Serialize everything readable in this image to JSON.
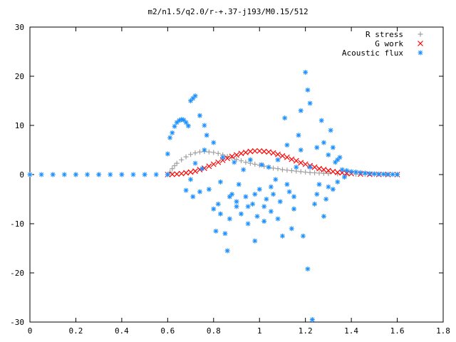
{
  "chart_data": {
    "type": "scatter",
    "title": "m2/n1.5/q2.0/r-+.37-j193/M0.15/512",
    "xlim": [
      0,
      1.8
    ],
    "ylim": [
      -30,
      30
    ],
    "x_ticks": [
      "0",
      "0.2",
      "0.4",
      "0.6",
      "0.8",
      "1",
      "1.2",
      "1.4",
      "1.6",
      "1.8"
    ],
    "y_ticks": [
      "30",
      "20",
      "10",
      "0",
      "-10",
      "-20",
      "-30"
    ],
    "x_tick_values": [
      0,
      0.2,
      0.4,
      0.6,
      0.8,
      1.0,
      1.2,
      1.4,
      1.6,
      1.8
    ],
    "y_tick_values": [
      30,
      20,
      10,
      0,
      -10,
      -20,
      -30
    ],
    "grid": false,
    "legend_position": "top-right",
    "series": [
      {
        "name": "R stress",
        "marker": "plus",
        "color": "#a0a0a0",
        "points": [
          [
            0.0,
            0
          ],
          [
            0.1,
            0
          ],
          [
            0.2,
            0
          ],
          [
            0.3,
            0
          ],
          [
            0.4,
            0
          ],
          [
            0.5,
            0
          ],
          [
            0.6,
            0
          ],
          [
            0.61,
            0.5
          ],
          [
            0.62,
            1.2
          ],
          [
            0.63,
            1.8
          ],
          [
            0.64,
            2.3
          ],
          [
            0.66,
            3.0
          ],
          [
            0.68,
            3.6
          ],
          [
            0.7,
            4.1
          ],
          [
            0.72,
            4.4
          ],
          [
            0.74,
            4.6
          ],
          [
            0.76,
            4.7
          ],
          [
            0.78,
            4.6
          ],
          [
            0.8,
            4.5
          ],
          [
            0.82,
            4.3
          ],
          [
            0.84,
            4.0
          ],
          [
            0.86,
            3.7
          ],
          [
            0.88,
            3.4
          ],
          [
            0.9,
            3.1
          ],
          [
            0.92,
            2.8
          ],
          [
            0.94,
            2.5
          ],
          [
            0.96,
            2.3
          ],
          [
            0.98,
            2.1
          ],
          [
            1.0,
            1.9
          ],
          [
            1.02,
            1.7
          ],
          [
            1.04,
            1.5
          ],
          [
            1.06,
            1.3
          ],
          [
            1.08,
            1.2
          ],
          [
            1.1,
            1.0
          ],
          [
            1.12,
            0.9
          ],
          [
            1.14,
            0.8
          ],
          [
            1.16,
            0.7
          ],
          [
            1.18,
            0.6
          ],
          [
            1.2,
            0.5
          ],
          [
            1.22,
            0.4
          ],
          [
            1.24,
            0.35
          ],
          [
            1.26,
            0.3
          ],
          [
            1.28,
            0.25
          ],
          [
            1.3,
            0.2
          ],
          [
            1.34,
            0.15
          ],
          [
            1.38,
            0.1
          ],
          [
            1.42,
            0.08
          ],
          [
            1.46,
            0.05
          ],
          [
            1.5,
            0.03
          ],
          [
            1.55,
            0.02
          ],
          [
            1.6,
            0.01
          ]
        ]
      },
      {
        "name": "G work",
        "marker": "cross",
        "color": "#ff0000",
        "points": [
          [
            0.6,
            0
          ],
          [
            0.62,
            0.05
          ],
          [
            0.64,
            0.1
          ],
          [
            0.66,
            0.2
          ],
          [
            0.68,
            0.35
          ],
          [
            0.7,
            0.5
          ],
          [
            0.72,
            0.7
          ],
          [
            0.74,
            1.0
          ],
          [
            0.76,
            1.3
          ],
          [
            0.78,
            1.7
          ],
          [
            0.8,
            2.1
          ],
          [
            0.82,
            2.5
          ],
          [
            0.84,
            2.9
          ],
          [
            0.86,
            3.3
          ],
          [
            0.88,
            3.7
          ],
          [
            0.9,
            4.0
          ],
          [
            0.92,
            4.3
          ],
          [
            0.94,
            4.5
          ],
          [
            0.96,
            4.7
          ],
          [
            0.98,
            4.8
          ],
          [
            1.0,
            4.8
          ],
          [
            1.02,
            4.7
          ],
          [
            1.04,
            4.6
          ],
          [
            1.06,
            4.4
          ],
          [
            1.08,
            4.1
          ],
          [
            1.1,
            3.8
          ],
          [
            1.12,
            3.5
          ],
          [
            1.14,
            3.1
          ],
          [
            1.16,
            2.8
          ],
          [
            1.18,
            2.4
          ],
          [
            1.2,
            2.1
          ],
          [
            1.22,
            1.8
          ],
          [
            1.24,
            1.5
          ],
          [
            1.26,
            1.2
          ],
          [
            1.28,
            1.0
          ],
          [
            1.3,
            0.8
          ],
          [
            1.32,
            0.6
          ],
          [
            1.34,
            0.45
          ],
          [
            1.36,
            0.35
          ],
          [
            1.38,
            0.25
          ],
          [
            1.4,
            0.18
          ],
          [
            1.44,
            0.1
          ],
          [
            1.48,
            0.05
          ],
          [
            1.52,
            0.03
          ],
          [
            1.56,
            0.01
          ],
          [
            1.6,
            0.0
          ]
        ]
      },
      {
        "name": "Acoustic flux",
        "marker": "star",
        "color": "#1e90ff",
        "points": [
          [
            0.0,
            0
          ],
          [
            0.05,
            0
          ],
          [
            0.1,
            0
          ],
          [
            0.15,
            0
          ],
          [
            0.2,
            0
          ],
          [
            0.25,
            0
          ],
          [
            0.3,
            0
          ],
          [
            0.35,
            0
          ],
          [
            0.4,
            0
          ],
          [
            0.45,
            0
          ],
          [
            0.5,
            0
          ],
          [
            0.55,
            0
          ],
          [
            0.6,
            0
          ],
          [
            0.6,
            4.2
          ],
          [
            0.61,
            7.5
          ],
          [
            0.62,
            8.5
          ],
          [
            0.63,
            9.8
          ],
          [
            0.64,
            10.6
          ],
          [
            0.65,
            11.0
          ],
          [
            0.66,
            11.2
          ],
          [
            0.67,
            11.1
          ],
          [
            0.68,
            10.6
          ],
          [
            0.69,
            9.9
          ],
          [
            0.7,
            15.0
          ],
          [
            0.71,
            15.5
          ],
          [
            0.72,
            16.0
          ],
          [
            0.72,
            2.3
          ],
          [
            0.7,
            -1.0
          ],
          [
            0.71,
            -4.5
          ],
          [
            0.68,
            -3.2
          ],
          [
            0.74,
            -3.5
          ],
          [
            0.75,
            1.2
          ],
          [
            0.76,
            5.0
          ],
          [
            0.77,
            8.0
          ],
          [
            0.78,
            -3.0
          ],
          [
            0.8,
            -7.0
          ],
          [
            0.81,
            -11.5
          ],
          [
            0.82,
            -6.0
          ],
          [
            0.83,
            -1.5
          ],
          [
            0.84,
            3.5
          ],
          [
            0.85,
            -12.0
          ],
          [
            0.86,
            -15.5
          ],
          [
            0.87,
            -9.0
          ],
          [
            0.88,
            -4.0
          ],
          [
            0.89,
            2.5
          ],
          [
            0.9,
            -6.5
          ],
          [
            0.91,
            -2.0
          ],
          [
            0.92,
            -8.0
          ],
          [
            0.93,
            1.0
          ],
          [
            0.94,
            -4.5
          ],
          [
            0.95,
            -10.0
          ],
          [
            0.96,
            3.0
          ],
          [
            0.97,
            -6.0
          ],
          [
            0.98,
            -13.5
          ],
          [
            0.99,
            -8.5
          ],
          [
            1.0,
            -3.0
          ],
          [
            1.01,
            2.0
          ],
          [
            1.02,
            -9.5
          ],
          [
            1.03,
            -5.0
          ],
          [
            1.04,
            1.5
          ],
          [
            1.05,
            -7.5
          ],
          [
            1.06,
            -4.0
          ],
          [
            1.07,
            -1.0
          ],
          [
            1.08,
            3.0
          ],
          [
            1.09,
            -5.5
          ],
          [
            1.1,
            -12.5
          ],
          [
            1.11,
            11.5
          ],
          [
            1.12,
            6.0
          ],
          [
            1.13,
            -3.5
          ],
          [
            1.14,
            -11.0
          ],
          [
            1.15,
            -7.0
          ],
          [
            1.16,
            1.5
          ],
          [
            1.17,
            8.0
          ],
          [
            1.18,
            13.0
          ],
          [
            1.19,
            -12.5
          ],
          [
            1.2,
            20.8
          ],
          [
            1.21,
            17.2
          ],
          [
            1.22,
            14.5
          ],
          [
            1.21,
            -19.2
          ],
          [
            1.23,
            -29.5
          ],
          [
            1.24,
            -6.0
          ],
          [
            1.25,
            5.5
          ],
          [
            1.26,
            -2.0
          ],
          [
            1.27,
            11.0
          ],
          [
            1.28,
            -8.5
          ],
          [
            1.29,
            -5.0
          ],
          [
            1.3,
            4.0
          ],
          [
            1.31,
            9.0
          ],
          [
            1.32,
            -3.0
          ],
          [
            1.33,
            2.5
          ],
          [
            1.34,
            -1.5
          ],
          [
            1.35,
            3.5
          ],
          [
            1.36,
            1.0
          ],
          [
            1.37,
            -0.5
          ],
          [
            1.38,
            0.8
          ],
          [
            1.4,
            0.6
          ],
          [
            1.42,
            0.5
          ],
          [
            1.44,
            0.4
          ],
          [
            1.46,
            0.3
          ],
          [
            1.48,
            0.2
          ],
          [
            1.5,
            0.15
          ],
          [
            1.52,
            0.1
          ],
          [
            1.54,
            0.08
          ],
          [
            1.56,
            0.05
          ],
          [
            1.58,
            0.03
          ],
          [
            1.6,
            0.02
          ],
          [
            0.74,
            12.0
          ],
          [
            0.76,
            10.0
          ],
          [
            0.8,
            6.5
          ],
          [
            0.83,
            -8.0
          ],
          [
            0.87,
            -4.5
          ],
          [
            0.9,
            -5.5
          ],
          [
            0.95,
            -6.5
          ],
          [
            0.98,
            -4.0
          ],
          [
            1.02,
            -6.5
          ],
          [
            1.05,
            -2.5
          ],
          [
            1.08,
            -9.0
          ],
          [
            1.12,
            -2.0
          ],
          [
            1.15,
            -4.5
          ],
          [
            1.18,
            5.0
          ],
          [
            1.22,
            1.5
          ],
          [
            1.25,
            -4.0
          ],
          [
            1.28,
            6.5
          ],
          [
            1.3,
            -2.5
          ],
          [
            1.32,
            5.5
          ],
          [
            1.34,
            3.0
          ]
        ]
      }
    ]
  }
}
